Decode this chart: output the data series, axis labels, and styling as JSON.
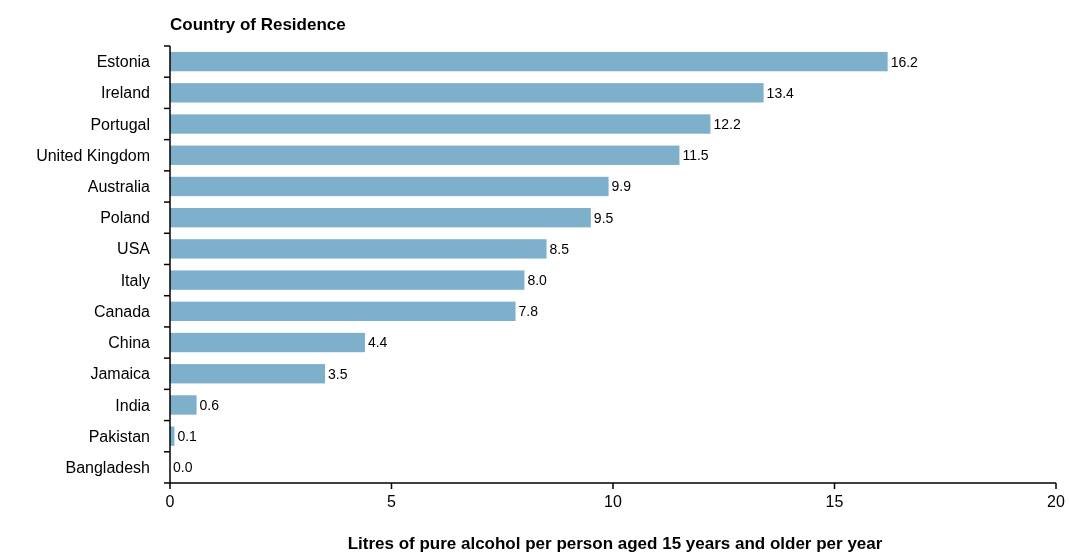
{
  "chart_data": {
    "type": "bar",
    "orientation": "horizontal",
    "title": "Country of Residence",
    "xlabel": "Litres of pure alcohol per person aged 15 years and older per year",
    "categories": [
      "Estonia",
      "Ireland",
      "Portugal",
      "United Kingdom",
      "Australia",
      "Poland",
      "USA",
      "Italy",
      "Canada",
      "China",
      "Jamaica",
      "India",
      "Pakistan",
      "Bangladesh"
    ],
    "values": [
      16.2,
      13.4,
      12.2,
      11.5,
      9.9,
      9.5,
      8.5,
      8.0,
      7.8,
      4.4,
      3.5,
      0.6,
      0.1,
      0.0
    ],
    "value_labels": [
      "16.2",
      "13.4",
      "12.2",
      "11.5",
      "9.9",
      "9.5",
      "8.5",
      "8.0",
      "7.8",
      "4.4",
      "3.5",
      "0.6",
      "0.1",
      "0.0"
    ],
    "color": "#7fb0cb",
    "xlim": [
      0,
      20
    ],
    "xticks": [
      0,
      5,
      10,
      15,
      20
    ]
  }
}
